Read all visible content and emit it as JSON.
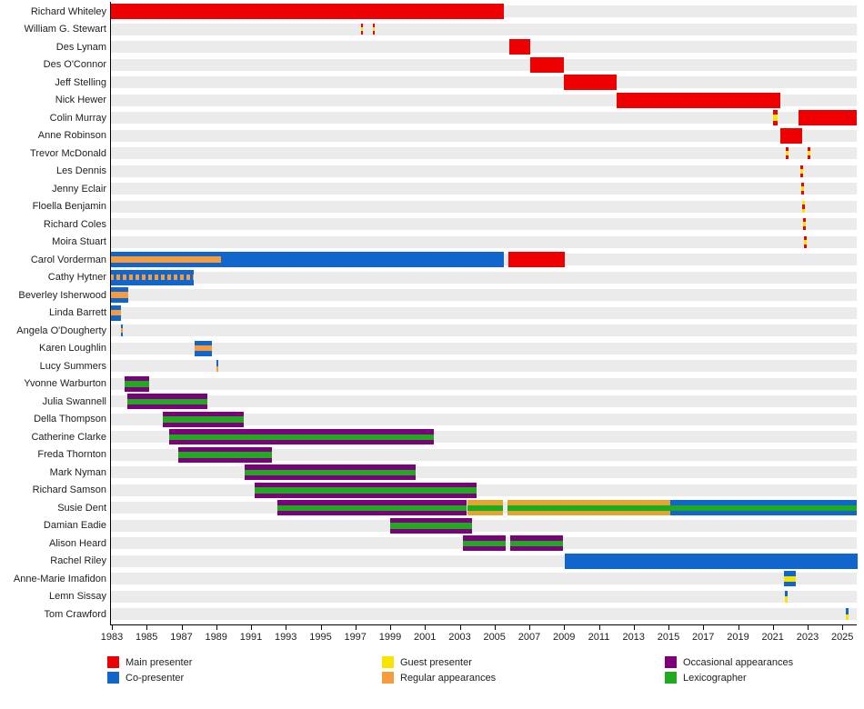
{
  "palette": {
    "main": "#ee0000",
    "co": "#1166cc",
    "guest": "#f7e500",
    "regular": "#f79c3c",
    "regular_gold": "#e2a52f",
    "occasional": "#7c007c",
    "lexicographer": "#1faa1f",
    "row_band": "#ebebeb",
    "axis": "#000000"
  },
  "chart_data": {
    "type": "timeline",
    "title": "",
    "xlabel": "",
    "ylabel": "",
    "x_axis": {
      "min": 1982.9,
      "max": 2025.85,
      "tick_years": [
        1983,
        1985,
        1987,
        1989,
        1991,
        1993,
        1995,
        1997,
        1999,
        2001,
        2003,
        2005,
        2007,
        2009,
        2011,
        2013,
        2015,
        2017,
        2019,
        2021,
        2023,
        2025
      ]
    },
    "people": [
      {
        "name": "Richard Whiteley",
        "segments": [
          {
            "start": 1982.9,
            "end": 2005.54,
            "stripes": [
              "main"
            ]
          }
        ]
      },
      {
        "name": "William G. Stewart",
        "segments": [
          {
            "start": 1997.3,
            "end": 1997.42,
            "mark": true,
            "stripes": [
              "main",
              "guest",
              "main"
            ]
          },
          {
            "start": 1998.0,
            "end": 1998.12,
            "mark": true,
            "stripes": [
              "main",
              "guest",
              "main"
            ]
          }
        ]
      },
      {
        "name": "Des Lynam",
        "segments": [
          {
            "start": 2005.85,
            "end": 2007.05,
            "stripes": [
              "main"
            ]
          }
        ]
      },
      {
        "name": "Des O'Connor",
        "segments": [
          {
            "start": 2007.05,
            "end": 2009.0,
            "stripes": [
              "main"
            ]
          }
        ]
      },
      {
        "name": "Jeff Stelling",
        "segments": [
          {
            "start": 2009.0,
            "end": 2012.0,
            "stripes": [
              "main"
            ]
          }
        ]
      },
      {
        "name": "Nick Hewer",
        "segments": [
          {
            "start": 2012.0,
            "end": 2021.43,
            "stripes": [
              "main"
            ]
          }
        ]
      },
      {
        "name": "Colin Murray",
        "segments": [
          {
            "start": 2021.0,
            "end": 2021.27,
            "stripes": [
              "main",
              "guest",
              "main"
            ]
          },
          {
            "start": 2022.5,
            "end": 2025.85,
            "stripes": [
              "main"
            ]
          }
        ]
      },
      {
        "name": "Anne Robinson",
        "segments": [
          {
            "start": 2021.43,
            "end": 2022.69,
            "stripes": [
              "main"
            ]
          }
        ]
      },
      {
        "name": "Trevor McDonald",
        "segments": [
          {
            "start": 2021.75,
            "end": 2021.87,
            "mark": true,
            "stripes": [
              "main",
              "guest",
              "main"
            ]
          },
          {
            "start": 2023.0,
            "end": 2023.12,
            "mark": true,
            "stripes": [
              "main",
              "guest",
              "main"
            ]
          }
        ]
      },
      {
        "name": "Les Dennis",
        "segments": [
          {
            "start": 2022.6,
            "end": 2022.72,
            "mark": true,
            "stripes": [
              "main",
              "guest",
              "main"
            ]
          }
        ]
      },
      {
        "name": "Jenny Eclair",
        "segments": [
          {
            "start": 2022.65,
            "end": 2022.77,
            "mark": true,
            "stripes": [
              "main",
              "guest",
              "main"
            ]
          }
        ]
      },
      {
        "name": "Floella Benjamin",
        "segments": [
          {
            "start": 2022.7,
            "end": 2022.82,
            "mark": true,
            "stripes": [
              "guest",
              "main",
              "guest"
            ]
          }
        ]
      },
      {
        "name": "Richard Coles",
        "segments": [
          {
            "start": 2022.75,
            "end": 2022.87,
            "mark": true,
            "stripes": [
              "main",
              "guest",
              "main"
            ]
          }
        ]
      },
      {
        "name": "Moira Stuart",
        "segments": [
          {
            "start": 2022.8,
            "end": 2022.92,
            "mark": true,
            "stripes": [
              "main",
              "guest",
              "main"
            ]
          }
        ]
      },
      {
        "name": "Carol Vorderman",
        "segments": [
          {
            "start": 1982.9,
            "end": 1989.27,
            "stripes": [
              "co",
              "regular",
              "co"
            ]
          },
          {
            "start": 1989.27,
            "end": 2005.54,
            "stripes": [
              "co"
            ]
          },
          {
            "start": 2005.8,
            "end": 2009.04,
            "stripes": [
              "main"
            ]
          }
        ]
      },
      {
        "name": "Cathy Hytner",
        "segments": [
          {
            "start": 1982.9,
            "end": 1987.7,
            "stripes": [
              "co",
              "regular",
              "co"
            ],
            "dashed_middle": true
          }
        ]
      },
      {
        "name": "Beverley Isherwood",
        "segments": [
          {
            "start": 1982.9,
            "end": 1983.94,
            "stripes": [
              "co",
              "regular",
              "co"
            ]
          }
        ]
      },
      {
        "name": "Linda Barrett",
        "segments": [
          {
            "start": 1982.9,
            "end": 1983.52,
            "stripes": [
              "co",
              "regular",
              "co"
            ]
          }
        ]
      },
      {
        "name": "Angela O'Dougherty",
        "segments": [
          {
            "start": 1983.5,
            "end": 1983.62,
            "mark": true,
            "stripes": [
              "co",
              "regular",
              "co"
            ]
          }
        ]
      },
      {
        "name": "Karen Loughlin",
        "segments": [
          {
            "start": 1987.76,
            "end": 1988.75,
            "stripes": [
              "co",
              "regular",
              "co"
            ]
          }
        ]
      },
      {
        "name": "Lucy Summers",
        "segments": [
          {
            "start": 1989.0,
            "end": 1989.12,
            "mark": true,
            "stripes": [
              "co",
              "regular"
            ]
          }
        ]
      },
      {
        "name": "Yvonne Warburton",
        "segments": [
          {
            "start": 1983.73,
            "end": 1985.14,
            "stripes": [
              "occasional",
              "lexicographer",
              "occasional"
            ]
          }
        ]
      },
      {
        "name": "Julia Swannell",
        "segments": [
          {
            "start": 1983.9,
            "end": 1988.5,
            "stripes": [
              "occasional",
              "lexicographer",
              "occasional"
            ]
          }
        ]
      },
      {
        "name": "Della Thompson",
        "segments": [
          {
            "start": 1985.93,
            "end": 1990.58,
            "stripes": [
              "occasional",
              "lexicographer",
              "occasional"
            ]
          }
        ]
      },
      {
        "name": "Catherine Clarke",
        "segments": [
          {
            "start": 1986.3,
            "end": 2001.5,
            "stripes": [
              "occasional",
              "lexicographer",
              "occasional"
            ]
          }
        ]
      },
      {
        "name": "Freda Thornton",
        "segments": [
          {
            "start": 1986.8,
            "end": 1992.2,
            "stripes": [
              "occasional",
              "lexicographer",
              "occasional"
            ]
          }
        ]
      },
      {
        "name": "Mark Nyman",
        "segments": [
          {
            "start": 1990.63,
            "end": 2000.47,
            "stripes": [
              "occasional",
              "lexicographer",
              "occasional"
            ]
          }
        ]
      },
      {
        "name": "Richard Samson",
        "segments": [
          {
            "start": 1991.2,
            "end": 2003.97,
            "stripes": [
              "occasional",
              "lexicographer",
              "occasional"
            ]
          }
        ]
      },
      {
        "name": "Susie Dent",
        "segments": [
          {
            "start": 1992.5,
            "end": 2003.4,
            "stripes": [
              "occasional",
              "lexicographer",
              "occasional"
            ]
          },
          {
            "start": 2003.45,
            "end": 2005.48,
            "stripes": [
              "regular_gold",
              "lexicographer",
              "regular_gold"
            ]
          },
          {
            "start": 2005.75,
            "end": 2015.1,
            "stripes": [
              "regular_gold",
              "lexicographer",
              "regular_gold"
            ]
          },
          {
            "start": 2015.1,
            "end": 2025.85,
            "stripes": [
              "co",
              "lexicographer",
              "co"
            ]
          }
        ]
      },
      {
        "name": "Damian Eadie",
        "segments": [
          {
            "start": 1999.0,
            "end": 2003.7,
            "stripes": [
              "occasional",
              "lexicographer",
              "occasional"
            ]
          }
        ]
      },
      {
        "name": "Alison Heard",
        "segments": [
          {
            "start": 2003.2,
            "end": 2005.64,
            "stripes": [
              "occasional",
              "lexicographer",
              "occasional"
            ]
          },
          {
            "start": 2005.9,
            "end": 2008.94,
            "stripes": [
              "occasional",
              "lexicographer",
              "occasional"
            ]
          }
        ]
      },
      {
        "name": "Rachel Riley",
        "segments": [
          {
            "start": 2009.04,
            "end": 2025.85,
            "stripes": [
              "co"
            ]
          }
        ]
      },
      {
        "name": "Anne-Marie Imafidon",
        "segments": [
          {
            "start": 2021.64,
            "end": 2022.32,
            "stripes": [
              "co",
              "guest",
              "co"
            ]
          }
        ]
      },
      {
        "name": "Lemn Sissay",
        "segments": [
          {
            "start": 2021.7,
            "end": 2021.82,
            "mark": true,
            "stripes": [
              "co",
              "guest"
            ]
          }
        ]
      },
      {
        "name": "Tom Crawford",
        "segments": [
          {
            "start": 2025.2,
            "end": 2025.32,
            "mark": true,
            "stripes": [
              "co",
              "guest"
            ]
          }
        ]
      }
    ],
    "legend": {
      "columns": [
        [
          {
            "label": "Main presenter",
            "role": "main"
          },
          {
            "label": "Co-presenter",
            "role": "co"
          }
        ],
        [
          {
            "label": "Guest presenter",
            "role": "guest"
          },
          {
            "label": "Regular appearances",
            "role": "regular"
          }
        ],
        [
          {
            "label": "Occasional appearances",
            "role": "occasional"
          },
          {
            "label": "Lexicographer",
            "role": "lexicographer"
          }
        ]
      ]
    }
  }
}
